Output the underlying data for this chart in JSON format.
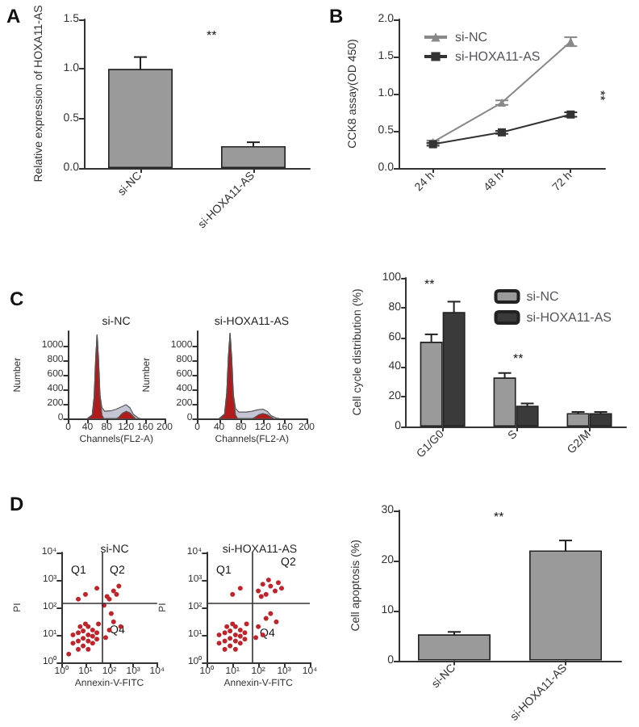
{
  "chart_data": [
    {
      "type": "bar",
      "categories": [
        "si-NC",
        "si-HOXA11-AS"
      ],
      "ylabel": "Relative expression of HOXA11-AS",
      "values": [
        1.0,
        0.22
      ],
      "errors": [
        0.12,
        0.04
      ],
      "color": "#9a9a9a",
      "ylim": [
        0,
        1.5
      ],
      "yticks": [
        {
          "value": 0,
          "label": "0.0"
        },
        0.5,
        {
          "value": 1,
          "label": "1.0"
        },
        1.5
      ],
      "annotations": [
        "A",
        "**"
      ]
    },
    {
      "type": "line",
      "categories": [
        "24 h",
        "48 h",
        "72 h"
      ],
      "ylabel": "CCK8 assay(OD 450)",
      "ylim": [
        0,
        2
      ],
      "yticks": [
        {
          "value": 0,
          "label": "0.0"
        },
        0.5,
        {
          "value": 1,
          "label": "1.0"
        },
        1.5,
        {
          "value": 2,
          "label": "2.0"
        }
      ],
      "legend": "top left",
      "annotations": [
        "B",
        "**"
      ],
      "series": [
        {
          "name": "si-NC",
          "color": "#888888",
          "marker": "triangle",
          "values": [
            0.35,
            0.88,
            1.7
          ],
          "errors": [
            0.02,
            0.03,
            0.06
          ]
        },
        {
          "name": "si-HOXA11-AS",
          "color": "#333333",
          "marker": "square",
          "values": [
            0.32,
            0.48,
            0.72
          ],
          "errors": [
            0.02,
            0.02,
            0.03
          ]
        }
      ]
    },
    {
      "type": "area",
      "title": "si-NC",
      "xlabel": "Channels(FL2-A)",
      "ylabel": "Number",
      "xlim": [
        0,
        200
      ],
      "xticks": [
        0,
        40,
        80,
        120,
        160,
        200
      ],
      "ylim": [
        0,
        1200
      ],
      "yticks": [
        0,
        200,
        400,
        600,
        800,
        1000
      ],
      "annotations": [
        "C"
      ],
      "series": [
        {
          "color": "#c4c4d4",
          "x": [
            40,
            50,
            54,
            57,
            60,
            63,
            66,
            70,
            76,
            90,
            100,
            110,
            120,
            128,
            135,
            145,
            150
          ],
          "values": [
            0,
            50,
            300,
            800,
            1150,
            800,
            320,
            150,
            100,
            110,
            130,
            160,
            190,
            150,
            60,
            10,
            0
          ]
        },
        {
          "color": "#b01c1c",
          "x": [
            40,
            50,
            54,
            57,
            60,
            63,
            66,
            70,
            74,
            100,
            105,
            112,
            120,
            128,
            135,
            140
          ],
          "values": [
            0,
            50,
            300,
            800,
            1150,
            800,
            300,
            50,
            0,
            0,
            20,
            70,
            100,
            80,
            30,
            0
          ]
        }
      ]
    },
    {
      "type": "area",
      "title": "si-HOXA11-AS",
      "xlabel": "Channels(FL2-A)",
      "ylabel": "Number",
      "xlim": [
        0,
        200
      ],
      "xticks": [
        0,
        40,
        80,
        120,
        160,
        200
      ],
      "ylim": [
        0,
        1200
      ],
      "yticks": [
        0,
        200,
        400,
        600,
        800,
        1000
      ],
      "series": [
        {
          "color": "#c4c4d4",
          "x": [
            40,
            50,
            54,
            57,
            60,
            63,
            66,
            70,
            76,
            90,
            100,
            110,
            120,
            128,
            135,
            145,
            150
          ],
          "values": [
            0,
            60,
            350,
            850,
            1170,
            820,
            330,
            140,
            90,
            90,
            100,
            120,
            130,
            100,
            40,
            8,
            0
          ]
        },
        {
          "color": "#b01c1c",
          "x": [
            40,
            50,
            54,
            57,
            60,
            63,
            66,
            70,
            74,
            100,
            105,
            112,
            120,
            128,
            135,
            140
          ],
          "values": [
            0,
            60,
            350,
            850,
            1170,
            820,
            300,
            50,
            0,
            0,
            15,
            50,
            70,
            55,
            20,
            0
          ]
        }
      ]
    },
    {
      "type": "bar",
      "categories": [
        "G1/G0",
        "S",
        "G2/M"
      ],
      "ylabel": "Cell cycle distribution (%)",
      "ylim": [
        0,
        100
      ],
      "yticks": [
        0,
        20,
        40,
        60,
        80,
        100
      ],
      "legend": "top right",
      "annotations": [
        "**",
        "**"
      ],
      "series": [
        {
          "name": "si-NC",
          "color": "#9a9a9a",
          "values": [
            57,
            33,
            9
          ],
          "errors": [
            5,
            3,
            0.8
          ]
        },
        {
          "name": "si-HOXA11-AS",
          "color": "#3a3a3a",
          "values": [
            77,
            14,
            9
          ],
          "errors": [
            7,
            1.5,
            0.8
          ]
        }
      ]
    },
    {
      "type": "scatter",
      "title": "si-NC",
      "xlabel": "Annexin-V-FITC",
      "ylabel": "PI",
      "log": "xy",
      "marker": "circle",
      "xlim": [
        1,
        10000
      ],
      "ylim": [
        1,
        10000
      ],
      "xticks": [
        {
          "value": 1,
          "label": "10⁰"
        },
        {
          "value": 10,
          "label": "10¹"
        },
        {
          "value": 100,
          "label": "10²"
        },
        {
          "value": 1000,
          "label": "10³"
        },
        {
          "value": 10000,
          "label": "10⁴"
        }
      ],
      "yticks": [
        {
          "value": 1,
          "label": "10⁰"
        },
        {
          "value": 10,
          "label": "10¹"
        },
        {
          "value": 100,
          "label": "10²"
        },
        {
          "value": 1000,
          "label": "10³"
        },
        {
          "value": 10000,
          "label": "10⁴"
        }
      ],
      "ref_lines": [
        {
          "axis": "x",
          "value": 50,
          "color": "#333333"
        },
        {
          "axis": "y",
          "value": 150,
          "color": "#333333"
        }
      ],
      "annotations": [
        "D",
        "Q1",
        "Q2",
        "Q4"
      ],
      "series": [
        {
          "color": "#c0242a",
          "x": [
            3,
            3,
            5,
            5,
            5,
            8,
            8,
            8,
            13,
            13,
            13,
            13,
            20,
            20,
            20,
            30,
            30,
            6,
            10,
            35,
            70,
            100,
            150,
            300,
            100,
            150,
            200,
            80,
            250,
            10,
            30,
            5,
            2,
            60,
            120
          ],
          "values": [
            5,
            10,
            3,
            6,
            12,
            4,
            7.5,
            14,
            3,
            6,
            10,
            20,
            5,
            9,
            15,
            7,
            12,
            20,
            25,
            25,
            8,
            15,
            30,
            20,
            200,
            400,
            300,
            250,
            600,
            300,
            500,
            200,
            2,
            120,
            60
          ]
        }
      ]
    },
    {
      "type": "scatter",
      "title": "si-HOXA11-AS",
      "xlabel": "Annexin-V-FITC",
      "ylabel": "PI",
      "log": "xy",
      "marker": "circle",
      "xlim": [
        1,
        10000
      ],
      "ylim": [
        1,
        10000
      ],
      "xticks": [
        {
          "value": 1,
          "label": "10⁰"
        },
        {
          "value": 10,
          "label": "10¹"
        },
        {
          "value": 100,
          "label": "10²"
        },
        {
          "value": 1000,
          "label": "10³"
        },
        {
          "value": 10000,
          "label": "10⁴"
        }
      ],
      "yticks": [
        {
          "value": 1,
          "label": "10⁰"
        },
        {
          "value": 10,
          "label": "10¹"
        },
        {
          "value": 100,
          "label": "10²"
        },
        {
          "value": 1000,
          "label": "10³"
        },
        {
          "value": 10000,
          "label": "10⁴"
        }
      ],
      "ref_lines": [
        {
          "axis": "x",
          "value": 60,
          "color": "#333333"
        },
        {
          "axis": "y",
          "value": 150,
          "color": "#333333"
        }
      ],
      "annotations": [
        "Q1",
        "Q2",
        "Q4"
      ],
      "series": [
        {
          "color": "#c0242a",
          "x": [
            3,
            3,
            5,
            5,
            5,
            8,
            8,
            8,
            13,
            13,
            13,
            13,
            20,
            20,
            20,
            30,
            30,
            6,
            10,
            35,
            100,
            150,
            200,
            300,
            450,
            250,
            600,
            800,
            130,
            100,
            200,
            150,
            300,
            80,
            500,
            10,
            20
          ],
          "values": [
            5,
            10,
            3,
            6,
            12,
            4,
            7.5,
            14,
            3,
            6,
            10,
            20,
            5,
            9,
            15,
            7,
            12,
            20,
            25,
            25,
            400,
            700,
            300,
            600,
            400,
            1000,
            800,
            500,
            250,
            20,
            40,
            10,
            60,
            8,
            30,
            300,
            500
          ]
        }
      ]
    },
    {
      "type": "bar",
      "categories": [
        "si-NC",
        "si-HOXA11-AS"
      ],
      "ylabel": "Cell apoptosis (%)",
      "values": [
        5.2,
        22
      ],
      "errors": [
        0.5,
        2
      ],
      "color": "#9a9a9a",
      "ylim": [
        0,
        30
      ],
      "yticks": [
        0,
        10,
        20,
        30
      ],
      "annotations": [
        "**"
      ]
    }
  ]
}
